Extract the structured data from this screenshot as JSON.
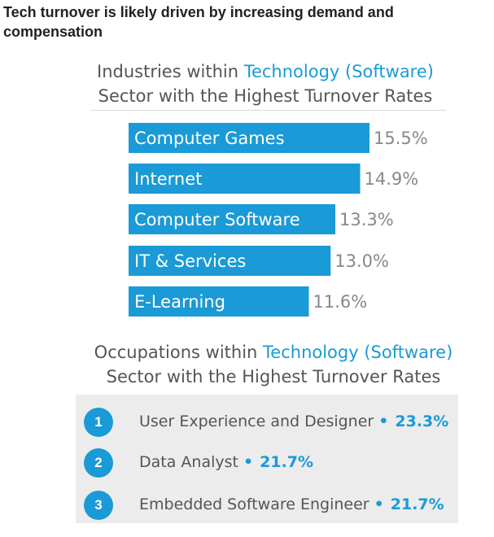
{
  "headline": "Tech turnover is likely driven by increasing demand and compensation",
  "industries_title": {
    "line1_pre": "Industries within ",
    "line1_accent": "Technology (Software)",
    "line2": "Sector with the Highest Turnover Rates"
  },
  "occupations_title": {
    "line1_pre": "Occupations within ",
    "line1_accent": "Technology (Software)",
    "line2": "Sector with the Highest Turnover Rates"
  },
  "colors": {
    "accent": "#1a9ad6",
    "value_text": "#888888",
    "panel_bg": "#ececec"
  },
  "occupations": [
    {
      "rank": "1",
      "name": "User Experience and Designer",
      "dot": "•",
      "value": "23.3%"
    },
    {
      "rank": "2",
      "name": "Data Analyst",
      "dot": "•",
      "value": "21.7%"
    },
    {
      "rank": "3",
      "name": "Embedded Software Engineer",
      "dot": "•",
      "value": "21.7%"
    }
  ],
  "chart_data": {
    "type": "bar",
    "orientation": "horizontal",
    "categories": [
      "Computer Games",
      "Internet",
      "Computer Software",
      "IT & Services",
      "E-Learning"
    ],
    "values": [
      15.5,
      14.9,
      13.3,
      13.0,
      11.6
    ],
    "value_labels": [
      "15.5%",
      "14.9%",
      "13.3%",
      "13.0%",
      "11.6%"
    ],
    "xlim": [
      0,
      15.5
    ],
    "grid": false
  }
}
